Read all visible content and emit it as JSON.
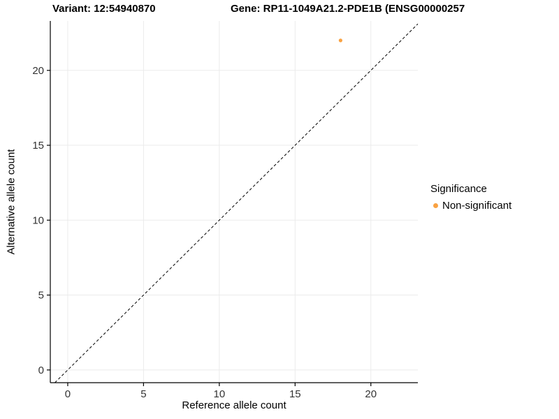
{
  "titles": {
    "left": "Variant: 12:54940870",
    "right": "Gene: RP11-1049A21.2-PDE1B (ENSG00000257"
  },
  "chart_data": {
    "type": "scatter",
    "xlabel": "Reference allele count",
    "ylabel": "Alternative allele count",
    "xlim": [
      -1.15,
      23.1
    ],
    "ylim": [
      -0.85,
      23.3
    ],
    "xticks": [
      0,
      5,
      10,
      15,
      20
    ],
    "yticks": [
      0,
      5,
      10,
      15,
      20
    ],
    "points": [
      {
        "x": 18,
        "y": 22,
        "series": "Non-significant"
      }
    ],
    "identity_line": {
      "equation": "y = x",
      "style": "dashed",
      "color": "#000000"
    },
    "grid": true,
    "colors": {
      "point": "#F9A242",
      "grid": "#EBEBEB",
      "axis": "#000000",
      "tick_label": "#333333"
    },
    "legend": {
      "title": "Significance",
      "position": "right",
      "entries": [
        {
          "label": "Non-significant",
          "color": "#F9A242"
        }
      ]
    }
  }
}
